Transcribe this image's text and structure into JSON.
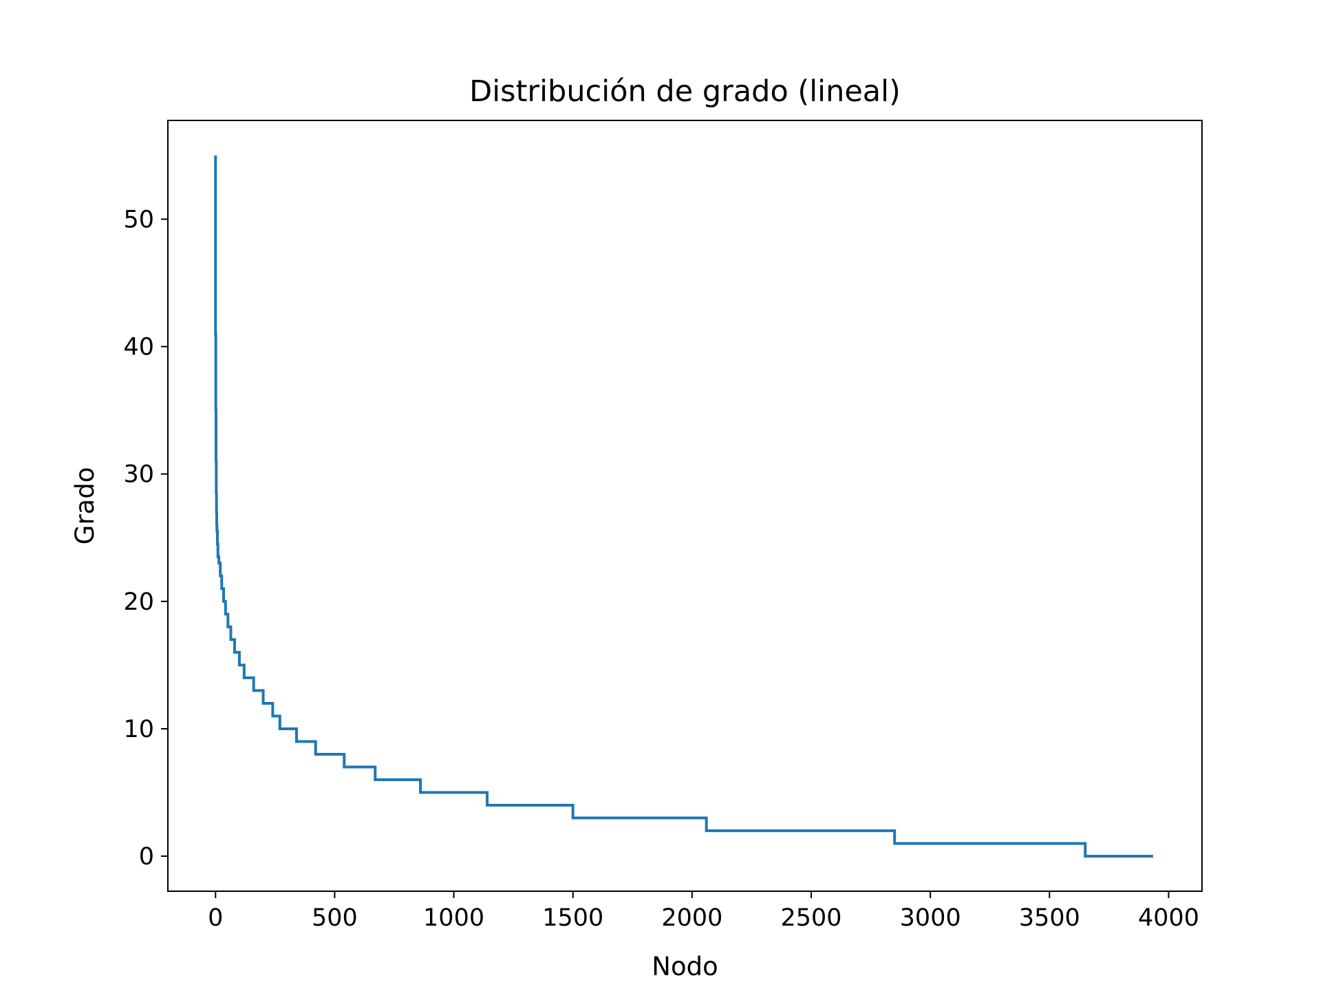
{
  "chart_data": {
    "type": "line",
    "title": "Distribución de grado (lineal)",
    "xlabel": "Nodo",
    "ylabel": "Grado",
    "xlim": [
      -200,
      4140
    ],
    "ylim": [
      -2.75,
      57.75
    ],
    "xticks": [
      0,
      500,
      1000,
      1500,
      2000,
      2500,
      3000,
      3500,
      4000
    ],
    "yticks": [
      0,
      10,
      20,
      30,
      40,
      50
    ],
    "grid": false,
    "legend": "none",
    "series": [
      {
        "color": "#1f77b4",
        "x": [
          0,
          0,
          1,
          2,
          3,
          4,
          5,
          6,
          8,
          10,
          14,
          20,
          26,
          34,
          42,
          52,
          64,
          80,
          100,
          120,
          160,
          200,
          240,
          270,
          340,
          420,
          540,
          670,
          860,
          1140,
          1500,
          2060,
          2850,
          3650,
          3935
        ],
        "y": [
          55,
          41,
          35,
          31,
          28.5,
          27,
          26,
          25.5,
          24.5,
          23.5,
          23,
          22,
          21,
          20,
          19,
          18,
          17,
          16,
          15,
          14,
          13,
          12,
          11,
          10,
          9,
          8,
          7,
          6,
          5,
          4,
          3,
          2,
          1,
          0,
          0
        ]
      }
    ]
  }
}
